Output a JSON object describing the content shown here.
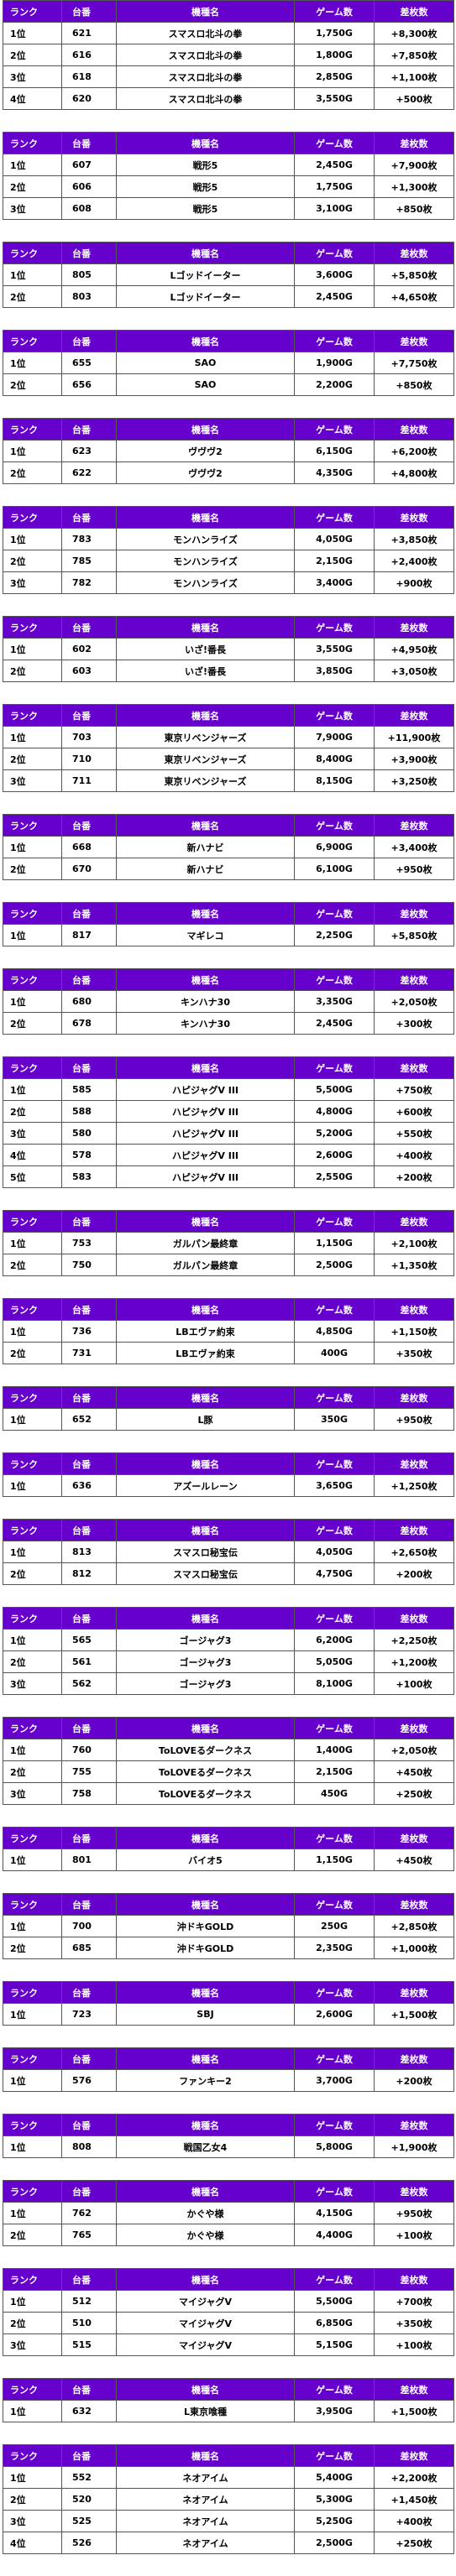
{
  "headers": {
    "rank": "ランク",
    "unit": "台番",
    "model": "機種名",
    "games": "ゲーム数",
    "diff": "差枚数"
  },
  "colors": {
    "header_bg": "#6600cc",
    "header_text": "#ffffff",
    "border": "#555555"
  },
  "tables": [
    {
      "rows": [
        {
          "rank": "1位",
          "unit": "621",
          "model": "スマスロ北斗の拳",
          "games": "1,750G",
          "diff": "+8,300枚"
        },
        {
          "rank": "2位",
          "unit": "616",
          "model": "スマスロ北斗の拳",
          "games": "1,800G",
          "diff": "+7,850枚"
        },
        {
          "rank": "3位",
          "unit": "618",
          "model": "スマスロ北斗の拳",
          "games": "2,850G",
          "diff": "+1,100枚"
        },
        {
          "rank": "4位",
          "unit": "620",
          "model": "スマスロ北斗の拳",
          "games": "3,550G",
          "diff": "+500枚"
        }
      ]
    },
    {
      "rows": [
        {
          "rank": "1位",
          "unit": "607",
          "model": "戦形5",
          "games": "2,450G",
          "diff": "+7,900枚"
        },
        {
          "rank": "2位",
          "unit": "606",
          "model": "戦形5",
          "games": "1,750G",
          "diff": "+1,300枚"
        },
        {
          "rank": "3位",
          "unit": "608",
          "model": "戦形5",
          "games": "3,100G",
          "diff": "+850枚"
        }
      ]
    },
    {
      "rows": [
        {
          "rank": "1位",
          "unit": "805",
          "model": "Lゴッドイーター",
          "games": "3,600G",
          "diff": "+5,850枚"
        },
        {
          "rank": "2位",
          "unit": "803",
          "model": "Lゴッドイーター",
          "games": "2,450G",
          "diff": "+4,650枚"
        }
      ]
    },
    {
      "rows": [
        {
          "rank": "1位",
          "unit": "655",
          "model": "SAO",
          "games": "1,900G",
          "diff": "+7,750枚"
        },
        {
          "rank": "2位",
          "unit": "656",
          "model": "SAO",
          "games": "2,200G",
          "diff": "+850枚"
        }
      ]
    },
    {
      "rows": [
        {
          "rank": "1位",
          "unit": "623",
          "model": "ヴヴヴ2",
          "games": "6,150G",
          "diff": "+6,200枚"
        },
        {
          "rank": "2位",
          "unit": "622",
          "model": "ヴヴヴ2",
          "games": "4,350G",
          "diff": "+4,800枚"
        }
      ]
    },
    {
      "rows": [
        {
          "rank": "1位",
          "unit": "783",
          "model": "モンハンライズ",
          "games": "4,050G",
          "diff": "+3,850枚"
        },
        {
          "rank": "2位",
          "unit": "785",
          "model": "モンハンライズ",
          "games": "2,150G",
          "diff": "+2,400枚"
        },
        {
          "rank": "3位",
          "unit": "782",
          "model": "モンハンライズ",
          "games": "3,400G",
          "diff": "+900枚"
        }
      ]
    },
    {
      "rows": [
        {
          "rank": "1位",
          "unit": "602",
          "model": "いざ!番長",
          "games": "3,550G",
          "diff": "+4,950枚"
        },
        {
          "rank": "2位",
          "unit": "603",
          "model": "いざ!番長",
          "games": "3,850G",
          "diff": "+3,050枚"
        }
      ]
    },
    {
      "rows": [
        {
          "rank": "1位",
          "unit": "703",
          "model": "東京リベンジャーズ",
          "games": "7,900G",
          "diff": "+11,900枚"
        },
        {
          "rank": "2位",
          "unit": "710",
          "model": "東京リベンジャーズ",
          "games": "8,400G",
          "diff": "+3,900枚"
        },
        {
          "rank": "3位",
          "unit": "711",
          "model": "東京リベンジャーズ",
          "games": "8,150G",
          "diff": "+3,250枚"
        }
      ]
    },
    {
      "rows": [
        {
          "rank": "1位",
          "unit": "668",
          "model": "新ハナビ",
          "games": "6,900G",
          "diff": "+3,400枚"
        },
        {
          "rank": "2位",
          "unit": "670",
          "model": "新ハナビ",
          "games": "6,100G",
          "diff": "+950枚"
        }
      ]
    },
    {
      "rows": [
        {
          "rank": "1位",
          "unit": "817",
          "model": "マギレコ",
          "games": "2,250G",
          "diff": "+5,850枚"
        }
      ]
    },
    {
      "rows": [
        {
          "rank": "1位",
          "unit": "680",
          "model": "キンハナ30",
          "games": "3,350G",
          "diff": "+2,050枚"
        },
        {
          "rank": "2位",
          "unit": "678",
          "model": "キンハナ30",
          "games": "2,450G",
          "diff": "+300枚"
        }
      ]
    },
    {
      "rows": [
        {
          "rank": "1位",
          "unit": "585",
          "model": "ハピジャグV III",
          "games": "5,500G",
          "diff": "+750枚"
        },
        {
          "rank": "2位",
          "unit": "588",
          "model": "ハピジャグV III",
          "games": "4,800G",
          "diff": "+600枚"
        },
        {
          "rank": "3位",
          "unit": "580",
          "model": "ハピジャグV III",
          "games": "5,200G",
          "diff": "+550枚"
        },
        {
          "rank": "4位",
          "unit": "578",
          "model": "ハピジャグV III",
          "games": "2,600G",
          "diff": "+400枚"
        },
        {
          "rank": "5位",
          "unit": "583",
          "model": "ハピジャグV III",
          "games": "2,550G",
          "diff": "+200枚"
        }
      ]
    },
    {
      "rows": [
        {
          "rank": "1位",
          "unit": "753",
          "model": "ガルパン最終章",
          "games": "1,150G",
          "diff": "+2,100枚"
        },
        {
          "rank": "2位",
          "unit": "750",
          "model": "ガルパン最終章",
          "games": "2,500G",
          "diff": "+1,350枚"
        }
      ]
    },
    {
      "rows": [
        {
          "rank": "1位",
          "unit": "736",
          "model": "LBエヴァ約束",
          "games": "4,850G",
          "diff": "+1,150枚"
        },
        {
          "rank": "2位",
          "unit": "731",
          "model": "LBエヴァ約束",
          "games": "400G",
          "diff": "+350枚"
        }
      ]
    },
    {
      "rows": [
        {
          "rank": "1位",
          "unit": "652",
          "model": "L豚",
          "games": "350G",
          "diff": "+950枚"
        }
      ]
    },
    {
      "rows": [
        {
          "rank": "1位",
          "unit": "636",
          "model": "アズールレーン",
          "games": "3,650G",
          "diff": "+1,250枚"
        }
      ]
    },
    {
      "rows": [
        {
          "rank": "1位",
          "unit": "813",
          "model": "スマスロ秘宝伝",
          "games": "4,050G",
          "diff": "+2,650枚"
        },
        {
          "rank": "2位",
          "unit": "812",
          "model": "スマスロ秘宝伝",
          "games": "4,750G",
          "diff": "+200枚"
        }
      ]
    },
    {
      "rows": [
        {
          "rank": "1位",
          "unit": "565",
          "model": "ゴージャグ3",
          "games": "6,200G",
          "diff": "+2,250枚"
        },
        {
          "rank": "2位",
          "unit": "561",
          "model": "ゴージャグ3",
          "games": "5,050G",
          "diff": "+1,200枚"
        },
        {
          "rank": "3位",
          "unit": "562",
          "model": "ゴージャグ3",
          "games": "8,100G",
          "diff": "+100枚"
        }
      ]
    },
    {
      "rows": [
        {
          "rank": "1位",
          "unit": "760",
          "model": "ToLOVEるダークネス",
          "games": "1,400G",
          "diff": "+2,050枚"
        },
        {
          "rank": "2位",
          "unit": "755",
          "model": "ToLOVEるダークネス",
          "games": "2,150G",
          "diff": "+450枚"
        },
        {
          "rank": "3位",
          "unit": "758",
          "model": "ToLOVEるダークネス",
          "games": "450G",
          "diff": "+250枚"
        }
      ]
    },
    {
      "rows": [
        {
          "rank": "1位",
          "unit": "801",
          "model": "バイオ5",
          "games": "1,150G",
          "diff": "+450枚"
        }
      ]
    },
    {
      "rows": [
        {
          "rank": "1位",
          "unit": "700",
          "model": "沖ドキGOLD",
          "games": "250G",
          "diff": "+2,850枚"
        },
        {
          "rank": "2位",
          "unit": "685",
          "model": "沖ドキGOLD",
          "games": "2,350G",
          "diff": "+1,000枚"
        }
      ]
    },
    {
      "rows": [
        {
          "rank": "1位",
          "unit": "723",
          "model": "SBJ",
          "games": "2,600G",
          "diff": "+1,500枚"
        }
      ]
    },
    {
      "rows": [
        {
          "rank": "1位",
          "unit": "576",
          "model": "ファンキー2",
          "games": "3,700G",
          "diff": "+200枚"
        }
      ]
    },
    {
      "rows": [
        {
          "rank": "1位",
          "unit": "808",
          "model": "戦国乙女4",
          "games": "5,800G",
          "diff": "+1,900枚"
        }
      ]
    },
    {
      "rows": [
        {
          "rank": "1位",
          "unit": "762",
          "model": "かぐや様",
          "games": "4,150G",
          "diff": "+950枚"
        },
        {
          "rank": "2位",
          "unit": "765",
          "model": "かぐや様",
          "games": "4,400G",
          "diff": "+100枚"
        }
      ]
    },
    {
      "rows": [
        {
          "rank": "1位",
          "unit": "512",
          "model": "マイジャグV",
          "games": "5,500G",
          "diff": "+700枚"
        },
        {
          "rank": "2位",
          "unit": "510",
          "model": "マイジャグV",
          "games": "6,850G",
          "diff": "+350枚"
        },
        {
          "rank": "3位",
          "unit": "515",
          "model": "マイジャグV",
          "games": "5,150G",
          "diff": "+100枚"
        }
      ]
    },
    {
      "rows": [
        {
          "rank": "1位",
          "unit": "632",
          "model": "L東京喰種",
          "games": "3,950G",
          "diff": "+1,500枚"
        }
      ]
    },
    {
      "rows": [
        {
          "rank": "1位",
          "unit": "552",
          "model": "ネオアイム",
          "games": "5,400G",
          "diff": "+2,200枚"
        },
        {
          "rank": "2位",
          "unit": "520",
          "model": "ネオアイム",
          "games": "5,300G",
          "diff": "+1,450枚"
        },
        {
          "rank": "3位",
          "unit": "525",
          "model": "ネオアイム",
          "games": "5,250G",
          "diff": "+400枚"
        },
        {
          "rank": "4位",
          "unit": "526",
          "model": "ネオアイム",
          "games": "2,500G",
          "diff": "+250枚"
        }
      ]
    }
  ]
}
